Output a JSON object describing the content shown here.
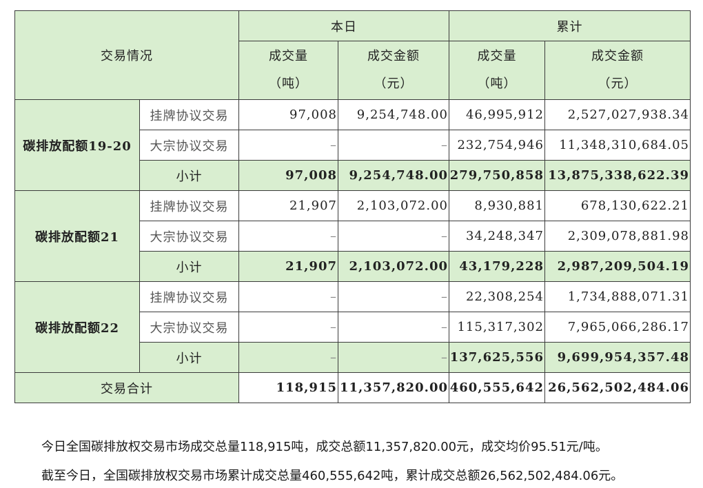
{
  "header": {
    "trade_info": "交易情况",
    "today": "本日",
    "cumulative": "累计",
    "volume_label": "成交量",
    "volume_unit": "（吨）",
    "amount_label": "成交金额",
    "amount_unit": "（元）"
  },
  "groups": [
    {
      "name": "碳排放配额19-20",
      "rows": [
        {
          "label": "挂牌协议交易",
          "today_volume": "97,008",
          "today_amount": "9,254,748.00",
          "cum_volume": "46,995,912",
          "cum_amount": "2,527,027,938.34"
        },
        {
          "label": "大宗协议交易",
          "today_volume": "–",
          "today_amount": "–",
          "cum_volume": "232,754,946",
          "cum_amount": "11,348,310,684.05"
        },
        {
          "label": "小计",
          "today_volume": "97,008",
          "today_amount": "9,254,748.00",
          "cum_volume": "279,750,858",
          "cum_amount": "13,875,338,622.39"
        }
      ]
    },
    {
      "name": "碳排放配额21",
      "rows": [
        {
          "label": "挂牌协议交易",
          "today_volume": "21,907",
          "today_amount": "2,103,072.00",
          "cum_volume": "8,930,881",
          "cum_amount": "678,130,622.21"
        },
        {
          "label": "大宗协议交易",
          "today_volume": "–",
          "today_amount": "–",
          "cum_volume": "34,248,347",
          "cum_amount": "2,309,078,881.98"
        },
        {
          "label": "小计",
          "today_volume": "21,907",
          "today_amount": "2,103,072.00",
          "cum_volume": "43,179,228",
          "cum_amount": "2,987,209,504.19"
        }
      ]
    },
    {
      "name": "碳排放配额22",
      "rows": [
        {
          "label": "挂牌协议交易",
          "today_volume": "–",
          "today_amount": "–",
          "cum_volume": "22,308,254",
          "cum_amount": "1,734,888,071.31"
        },
        {
          "label": "大宗协议交易",
          "today_volume": "–",
          "today_amount": "–",
          "cum_volume": "115,317,302",
          "cum_amount": "7,965,066,286.17"
        },
        {
          "label": "小计",
          "today_volume": "–",
          "today_amount": "–",
          "cum_volume": "137,625,556",
          "cum_amount": "9,699,954,357.48"
        }
      ]
    }
  ],
  "total": {
    "label": "交易合计",
    "today_volume": "118,915",
    "today_amount": "11,357,820.00",
    "cum_volume": "460,555,642",
    "cum_amount": "26,562,502,484.06"
  },
  "summary": {
    "line1": "今日全国碳排放权交易市场成交总量118,915吨，成交总额11,357,820.00元，成交均价95.51元/吨。",
    "line2": "截至今日，全国碳排放权交易市场累计成交总量460,555,642吨，累计成交总额26,562,502,484.06元。"
  }
}
